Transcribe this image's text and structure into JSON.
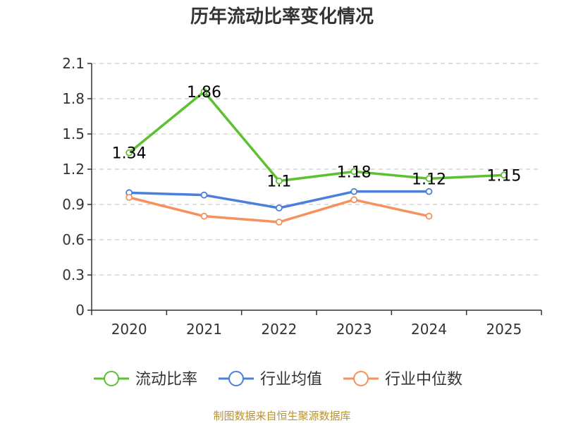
{
  "chart_data": {
    "type": "line",
    "title": "历年流动比率变化情况",
    "categories": [
      "2020",
      "2021",
      "2022",
      "2023",
      "2024",
      "2025"
    ],
    "ylim": [
      0,
      2.1
    ],
    "yticks": [
      "0",
      "0.3",
      "0.6",
      "0.9",
      "1.2",
      "1.5",
      "1.8",
      "2.1"
    ],
    "grid": true,
    "legend_position": "bottom",
    "series": [
      {
        "name": "流动比率",
        "color": "#5cc130",
        "values": [
          1.34,
          1.86,
          1.1,
          1.18,
          1.12,
          1.15
        ],
        "labels": [
          "1.34",
          "1.86",
          "1.1",
          "1.18",
          "1.12",
          "1.15"
        ]
      },
      {
        "name": "行业均值",
        "color": "#4a7fdc",
        "values": [
          1.0,
          0.98,
          0.87,
          1.01,
          1.01,
          null
        ]
      },
      {
        "name": "行业中位数",
        "color": "#f4915d",
        "values": [
          0.96,
          0.8,
          0.75,
          0.94,
          0.8,
          null
        ]
      }
    ],
    "source": "制图数据来自恒生聚源数据库"
  }
}
